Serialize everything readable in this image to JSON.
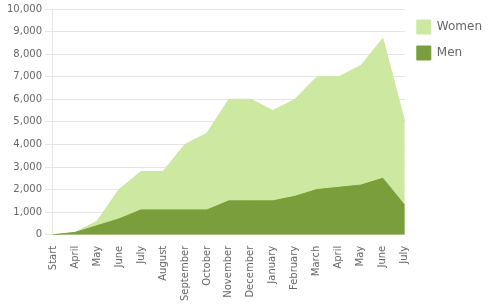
{
  "chart_data": {
    "type": "area",
    "categories": [
      "Start",
      "April",
      "May",
      "June",
      "July",
      "August",
      "September",
      "October",
      "November",
      "December",
      "January",
      "February",
      "March",
      "April",
      "May",
      "June",
      "July"
    ],
    "series": [
      {
        "name": "Women",
        "color": "#cde8a0",
        "values": [
          0,
          100,
          600,
          2000,
          2800,
          2800,
          4000,
          4500,
          6000,
          6000,
          5500,
          6000,
          7000,
          7000,
          7500,
          8700,
          5000
        ]
      },
      {
        "name": "Men",
        "color": "#7a9e3b",
        "values": [
          0,
          100,
          400,
          700,
          1100,
          1100,
          1100,
          1100,
          1500,
          1500,
          1500,
          1700,
          2000,
          2100,
          2200,
          2500,
          1300
        ]
      }
    ],
    "stacked": false,
    "ylim": [
      0,
      10000
    ],
    "yticks": [
      0,
      1000,
      2000,
      3000,
      4000,
      5000,
      6000,
      7000,
      8000,
      9000,
      10000
    ],
    "grid": "y",
    "legend": "right"
  }
}
